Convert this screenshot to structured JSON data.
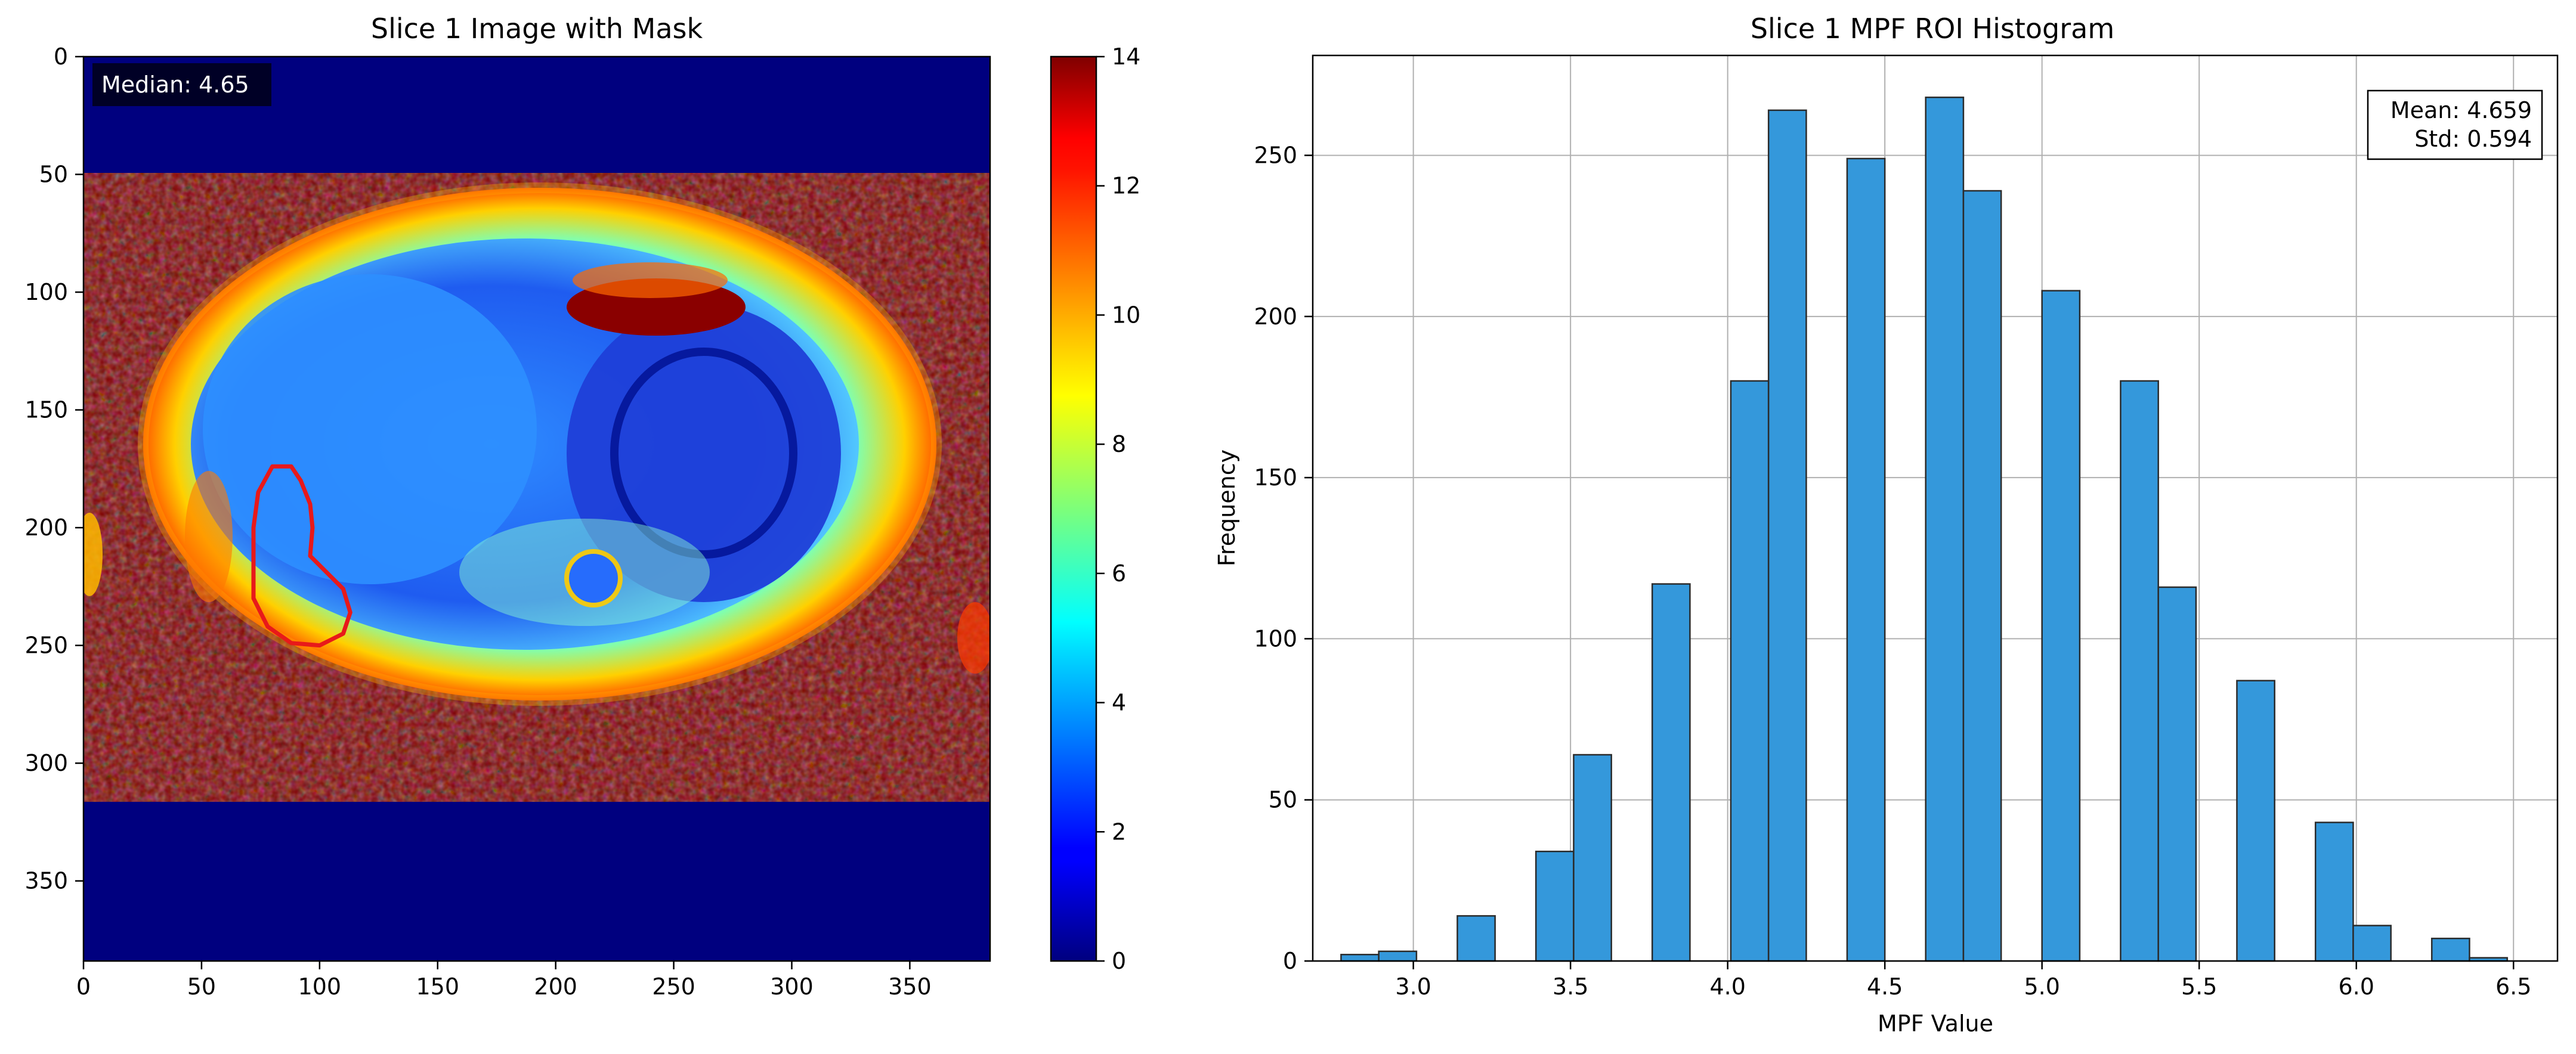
{
  "chart_data": [
    {
      "type": "heatmap",
      "title": "Slice 1 Image with Mask",
      "xlim": [
        0,
        384
      ],
      "ylim": [
        384,
        0
      ],
      "xticks": [
        0,
        50,
        100,
        150,
        200,
        250,
        300,
        350
      ],
      "yticks": [
        0,
        50,
        100,
        150,
        200,
        250,
        300,
        350
      ],
      "xtick_labels": [
        "0",
        "50",
        "100",
        "150",
        "200",
        "250",
        "300",
        "350"
      ],
      "ytick_labels": [
        "0",
        "50",
        "100",
        "150",
        "200",
        "250",
        "300",
        "350"
      ],
      "colormap": "jet",
      "colorbar": {
        "range": [
          0,
          14
        ],
        "ticks": [
          0,
          2,
          4,
          6,
          8,
          10,
          12,
          14
        ],
        "tick_labels": [
          "0",
          "2",
          "4",
          "6",
          "8",
          "10",
          "12",
          "14"
        ]
      },
      "annotation": "Median: 4.65",
      "mask_color": "#e8191a",
      "mask_contour": [
        [
          80,
          174
        ],
        [
          88,
          174
        ],
        [
          92,
          180
        ],
        [
          96,
          190
        ],
        [
          97,
          200
        ],
        [
          96,
          212
        ],
        [
          102,
          218
        ],
        [
          110,
          226
        ],
        [
          113,
          236
        ],
        [
          110,
          245
        ],
        [
          100,
          250
        ],
        [
          88,
          249
        ],
        [
          78,
          242
        ],
        [
          72,
          230
        ],
        [
          72,
          215
        ],
        [
          72,
          200
        ],
        [
          74,
          185
        ]
      ]
    },
    {
      "type": "bar",
      "title": "Slice 1 MPF ROI Histogram",
      "xlabel": "MPF Value",
      "ylabel": "Frequency",
      "xlim": [
        2.68,
        6.64
      ],
      "ylim": [
        0,
        281
      ],
      "xticks": [
        3.0,
        3.5,
        4.0,
        4.5,
        5.0,
        5.5,
        6.0,
        6.5
      ],
      "xtick_labels": [
        "3.0",
        "3.5",
        "4.0",
        "4.5",
        "5.0",
        "5.5",
        "6.0",
        "6.5"
      ],
      "yticks": [
        0,
        50,
        100,
        150,
        200,
        250
      ],
      "ytick_labels": [
        "0",
        "50",
        "100",
        "150",
        "200",
        "250"
      ],
      "grid": true,
      "bar_color": "#3498db",
      "bin_width": 0.12,
      "bars": [
        {
          "x": 2.83,
          "value": 2
        },
        {
          "x": 2.95,
          "value": 3
        },
        {
          "x": 3.2,
          "value": 14
        },
        {
          "x": 3.45,
          "value": 34
        },
        {
          "x": 3.57,
          "value": 64
        },
        {
          "x": 3.82,
          "value": 117
        },
        {
          "x": 4.07,
          "value": 180
        },
        {
          "x": 4.19,
          "value": 264
        },
        {
          "x": 4.44,
          "value": 249
        },
        {
          "x": 4.69,
          "value": 268
        },
        {
          "x": 4.81,
          "value": 239
        },
        {
          "x": 5.06,
          "value": 208
        },
        {
          "x": 5.31,
          "value": 180
        },
        {
          "x": 5.43,
          "value": 116
        },
        {
          "x": 5.68,
          "value": 87
        },
        {
          "x": 5.93,
          "value": 43
        },
        {
          "x": 6.05,
          "value": 11
        },
        {
          "x": 6.3,
          "value": 7
        },
        {
          "x": 6.42,
          "value": 1
        }
      ],
      "stats": {
        "mean_label": "Mean: 4.659",
        "std_label": "Std: 0.594"
      }
    }
  ]
}
